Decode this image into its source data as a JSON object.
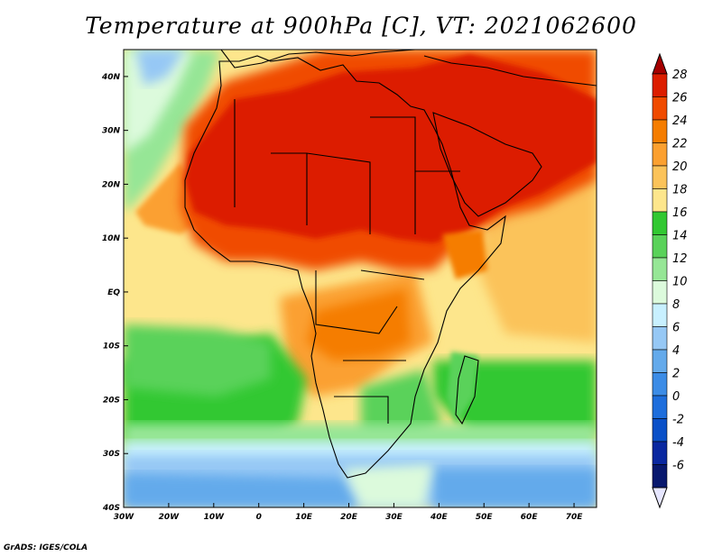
{
  "title": "Temperature at 900hPa [C], VT: 2021062600",
  "credit": "GrADS: IGES/COLA",
  "map": {
    "lon_min": -30,
    "lon_max": 75,
    "lat_min": -40,
    "lat_max": 45,
    "lat_ticks": [
      {
        "lat": 40,
        "label": "40N"
      },
      {
        "lat": 30,
        "label": "30N"
      },
      {
        "lat": 20,
        "label": "20N"
      },
      {
        "lat": 10,
        "label": "10N"
      },
      {
        "lat": 0,
        "label": "EQ"
      },
      {
        "lat": -10,
        "label": "10S"
      },
      {
        "lat": -20,
        "label": "20S"
      },
      {
        "lat": -30,
        "label": "30S"
      },
      {
        "lat": -40,
        "label": "40S"
      }
    ],
    "lon_ticks": [
      {
        "lon": -30,
        "label": "30W"
      },
      {
        "lon": -20,
        "label": "20W"
      },
      {
        "lon": -10,
        "label": "10W"
      },
      {
        "lon": 0,
        "label": "0"
      },
      {
        "lon": 10,
        "label": "10E"
      },
      {
        "lon": 20,
        "label": "20E"
      },
      {
        "lon": 30,
        "label": "30E"
      },
      {
        "lon": 40,
        "label": "40E"
      },
      {
        "lon": 50,
        "label": "50E"
      },
      {
        "lon": 60,
        "label": "60E"
      },
      {
        "lon": 70,
        "label": "70E"
      }
    ]
  },
  "colorbar": {
    "labels": [
      "28",
      "26",
      "24",
      "22",
      "20",
      "18",
      "16",
      "14",
      "12",
      "10",
      "8",
      "6",
      "4",
      "2",
      "0",
      "-2",
      "-4",
      "-6"
    ],
    "colors": [
      "#a50000",
      "#dc1e00",
      "#f04b00",
      "#f57d00",
      "#fba030",
      "#fbc35a",
      "#fde68c",
      "#32c832",
      "#5ad25a",
      "#96e696",
      "#dcfadc",
      "#c8f0ff",
      "#96c8f5",
      "#64aaeb",
      "#3c8ce6",
      "#1e6edc",
      "#0a50c8",
      "#0a28a0",
      "#08186e",
      "#e6e6ff"
    ]
  }
}
